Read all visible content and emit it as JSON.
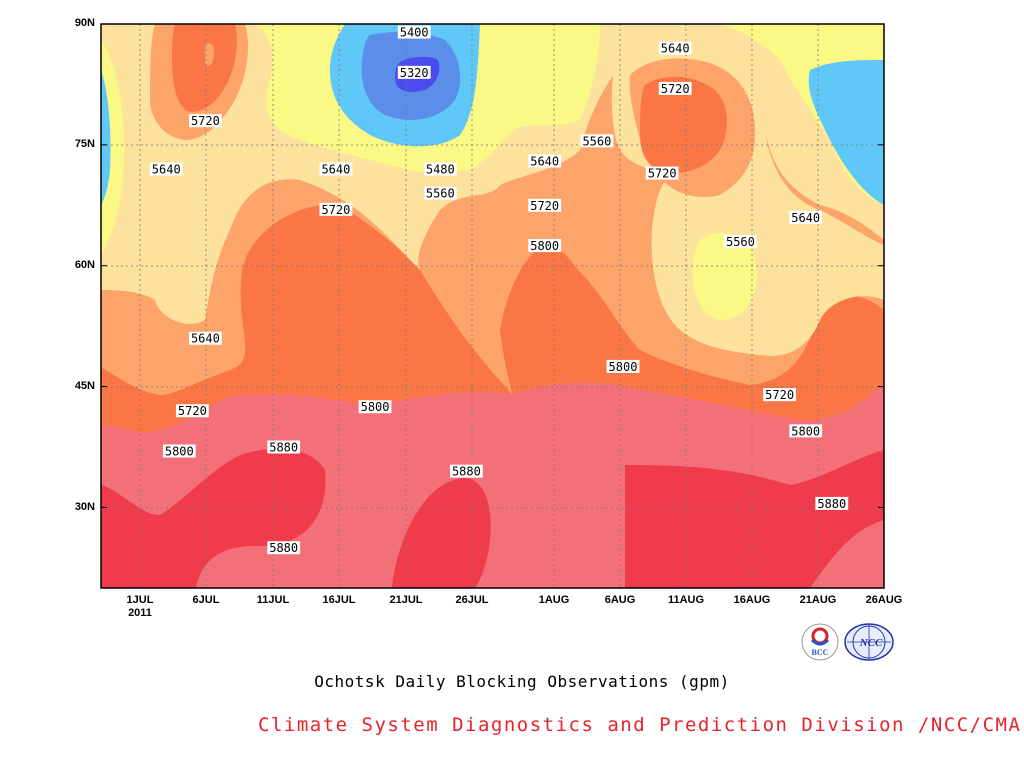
{
  "chart_data": {
    "type": "heatmap",
    "title": "Ochotsk Daily Blocking Observations (gpm)",
    "x_ticks": [
      "1JUL",
      "6JUL",
      "11JUL",
      "16JUL",
      "21JUL",
      "26JUL",
      "1AUG",
      "6AUG",
      "11AUG",
      "16AUG",
      "21AUG",
      "26AUG"
    ],
    "x_year": "2011",
    "y_ticks": [
      "90N",
      "75N",
      "60N",
      "45N",
      "30N"
    ],
    "xlim": [
      "2011-06-27",
      "2011-08-26"
    ],
    "ylim": [
      20,
      90
    ],
    "contour_levels": [
      5320,
      5400,
      5480,
      5560,
      5640,
      5720,
      5800,
      5880
    ],
    "contour_labels": [
      {
        "text": "5400",
        "x": "2011-07-21",
        "y": 89
      },
      {
        "text": "5320",
        "x": "2011-07-21",
        "y": 84
      },
      {
        "text": "5640",
        "x": "2011-08-10",
        "y": 87
      },
      {
        "text": "5720",
        "x": "2011-08-10",
        "y": 82
      },
      {
        "text": "5720",
        "x": "2011-07-05",
        "y": 78
      },
      {
        "text": "5560",
        "x": "2011-08-04",
        "y": 75.5
      },
      {
        "text": "5640",
        "x": "2011-07-02",
        "y": 72
      },
      {
        "text": "5640",
        "x": "2011-07-15",
        "y": 72
      },
      {
        "text": "5480",
        "x": "2011-07-23",
        "y": 72
      },
      {
        "text": "5640",
        "x": "2011-07-31",
        "y": 73
      },
      {
        "text": "5720",
        "x": "2011-08-09",
        "y": 71.5
      },
      {
        "text": "5560",
        "x": "2011-07-23",
        "y": 69
      },
      {
        "text": "5720",
        "x": "2011-07-15",
        "y": 67
      },
      {
        "text": "5720",
        "x": "2011-07-31",
        "y": 67.5
      },
      {
        "text": "5640",
        "x": "2011-08-20",
        "y": 66
      },
      {
        "text": "5560",
        "x": "2011-08-15",
        "y": 63
      },
      {
        "text": "5800",
        "x": "2011-07-31",
        "y": 62.5
      },
      {
        "text": "5640",
        "x": "2011-07-05",
        "y": 51
      },
      {
        "text": "5800",
        "x": "2011-08-06",
        "y": 47.5
      },
      {
        "text": "5720",
        "x": "2011-08-18",
        "y": 44
      },
      {
        "text": "5800",
        "x": "2011-07-18",
        "y": 42.5
      },
      {
        "text": "5720",
        "x": "2011-07-04",
        "y": 42
      },
      {
        "text": "5800",
        "x": "2011-08-20",
        "y": 39.5
      },
      {
        "text": "5800",
        "x": "2011-07-03",
        "y": 37
      },
      {
        "text": "5880",
        "x": "2011-07-11",
        "y": 37.5
      },
      {
        "text": "5880",
        "x": "2011-07-25",
        "y": 34.5
      },
      {
        "text": "5880",
        "x": "2011-08-22",
        "y": 30.5
      },
      {
        "text": "5880",
        "x": "2011-07-11",
        "y": 25
      }
    ],
    "colors": {
      "5320": "#4b4bf0",
      "5400": "#5a8ee8",
      "5480": "#60c8f8",
      "5560": "#fbf985",
      "5640": "#fde29d",
      "5720": "#fca46a",
      "5800": "#fb7645",
      "5880": "#f47079",
      "above": "#ef3b4c"
    }
  },
  "footer": {
    "title": "Ochotsk Daily Blocking Observations (gpm)",
    "credit": "Climate System Diagnostics and Prediction Division /NCC/CMA",
    "logo1": "BCC",
    "logo2": "NCC"
  }
}
